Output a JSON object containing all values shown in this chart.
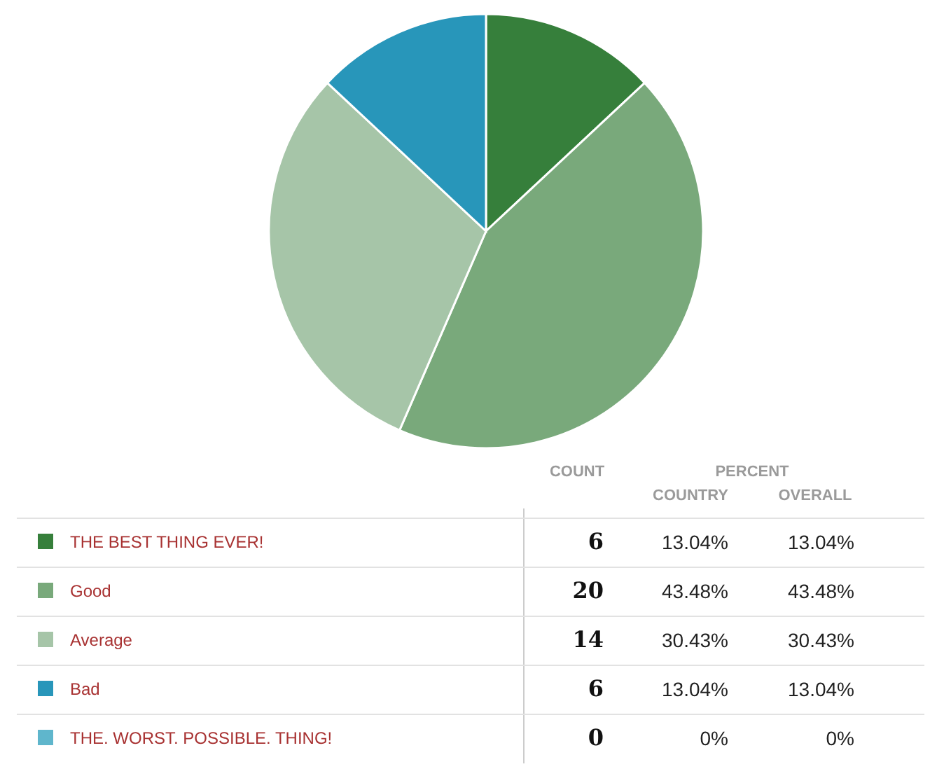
{
  "chart_data": {
    "type": "pie",
    "categories": [
      "THE BEST THING EVER!",
      "Good",
      "Average",
      "Bad",
      "THE. WORST. POSSIBLE. THING!"
    ],
    "values": [
      6,
      20,
      14,
      6,
      0
    ],
    "colors": [
      "#367f3b",
      "#79a97b",
      "#a6c5a8",
      "#2896ba",
      "#5fb6cc"
    ],
    "value_labels": [
      "6",
      "20",
      "14",
      "6",
      "0"
    ],
    "legend": "bottom",
    "annotations": [
      "COUNT",
      "PERCENT",
      "COUNTRY",
      "OVERALL",
      "13.04%",
      "13.04%",
      "43.48%",
      "43.48%",
      "30.43%",
      "30.43%",
      "13.04%",
      "13.04%",
      "0%",
      "0%"
    ]
  }
}
